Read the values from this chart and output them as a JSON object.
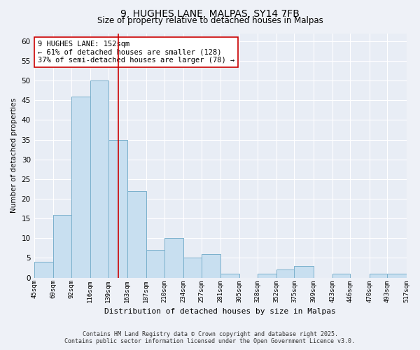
{
  "title1": "9, HUGHES LANE, MALPAS, SY14 7FB",
  "title2": "Size of property relative to detached houses in Malpas",
  "xlabel": "Distribution of detached houses by size in Malpas",
  "ylabel": "Number of detached properties",
  "bar_color": "#c8dff0",
  "bar_edge_color": "#7ab0cc",
  "bins": [
    45,
    69,
    92,
    116,
    139,
    163,
    187,
    210,
    234,
    257,
    281,
    305,
    328,
    352,
    375,
    399,
    423,
    446,
    470,
    493,
    517
  ],
  "counts": [
    4,
    16,
    46,
    50,
    35,
    22,
    7,
    10,
    5,
    6,
    1,
    0,
    1,
    2,
    3,
    0,
    1,
    0,
    1,
    1
  ],
  "tick_labels": [
    "45sqm",
    "69sqm",
    "92sqm",
    "116sqm",
    "139sqm",
    "163sqm",
    "187sqm",
    "210sqm",
    "234sqm",
    "257sqm",
    "281sqm",
    "305sqm",
    "328sqm",
    "352sqm",
    "375sqm",
    "399sqm",
    "423sqm",
    "446sqm",
    "470sqm",
    "493sqm",
    "517sqm"
  ],
  "vline_x": 152,
  "vline_color": "#cc0000",
  "annotation_title": "9 HUGHES LANE: 152sqm",
  "annotation_line1": "← 61% of detached houses are smaller (128)",
  "annotation_line2": "37% of semi-detached houses are larger (78) →",
  "ylim": [
    0,
    62
  ],
  "yticks": [
    0,
    5,
    10,
    15,
    20,
    25,
    30,
    35,
    40,
    45,
    50,
    55,
    60
  ],
  "footer_line1": "Contains HM Land Registry data © Crown copyright and database right 2025.",
  "footer_line2": "Contains public sector information licensed under the Open Government Licence v3.0.",
  "background_color": "#eef1f7",
  "grid_color": "#ffffff",
  "axis_bg_color": "#e8edf5"
}
